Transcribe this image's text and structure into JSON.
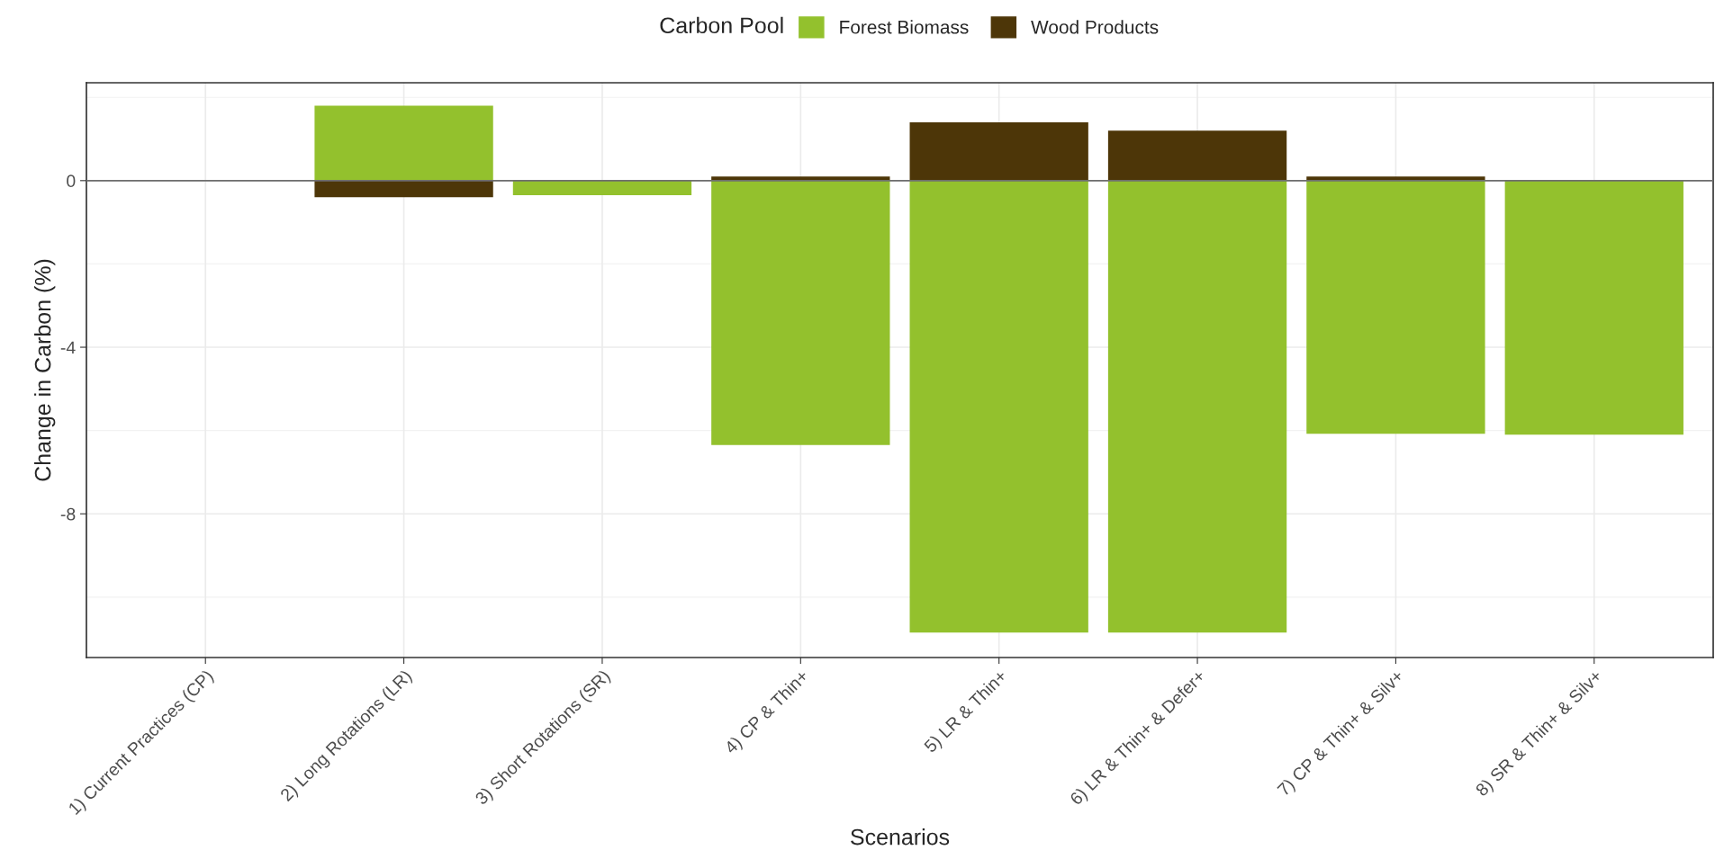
{
  "chart_data": {
    "type": "bar",
    "stacked": true,
    "xlabel": "Scenarios",
    "ylabel": "Change in Carbon (%)",
    "legend_title": "Carbon Pool",
    "legend": "top",
    "categories": [
      "1) Current Practices (CP)",
      "2) Long Rotations (LR)",
      "3) Short Rotations (SR)",
      "4) CP & Thin+",
      "5) LR & Thin+",
      "6) LR & Thin+ & Defer+",
      "7) CP & Thin+ & Silv+",
      "8) SR & Thin+ & Silv+"
    ],
    "series": [
      {
        "name": "Forest Biomass",
        "color": "#93c12d",
        "values": [
          0,
          1.8,
          -0.35,
          -6.35,
          -10.85,
          -10.85,
          -6.08,
          -6.1
        ]
      },
      {
        "name": "Wood Products",
        "color": "#4d3608",
        "values": [
          0,
          -0.4,
          0,
          0.1,
          1.4,
          1.2,
          0.1,
          0
        ]
      }
    ],
    "ylim": [
      -11.45,
      2.35
    ],
    "yticks": [
      0,
      -4,
      -8
    ],
    "ref_lines": [
      {
        "axis": "y",
        "value": 0,
        "color": "#6e6e6e"
      }
    ],
    "grid": true
  }
}
